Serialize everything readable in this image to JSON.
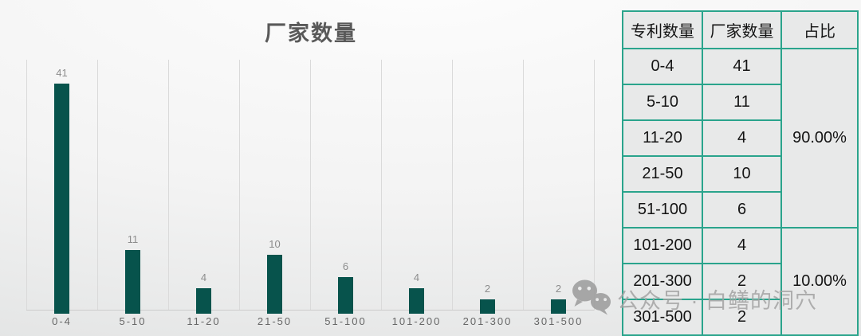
{
  "chart_data": {
    "type": "bar",
    "title": "厂家数量",
    "categories": [
      "0-4",
      "5-10",
      "11-20",
      "21-50",
      "51-100",
      "101-200",
      "201-300",
      "301-500"
    ],
    "values": [
      41,
      11,
      4,
      10,
      6,
      4,
      2,
      2
    ],
    "xlabel": "",
    "ylabel": "",
    "ylim": [
      0,
      45
    ],
    "bar_color": "#07534c",
    "data_labels": true,
    "gridlines": "vertical-category-separators",
    "legend": "none"
  },
  "table": {
    "headers": [
      "专利数量",
      "厂家数量",
      "占比"
    ],
    "rows": [
      {
        "range": "0-4",
        "count": "41"
      },
      {
        "range": "5-10",
        "count": "11"
      },
      {
        "range": "11-20",
        "count": "4"
      },
      {
        "range": "21-50",
        "count": "10"
      },
      {
        "range": "51-100",
        "count": "6"
      },
      {
        "range": "101-200",
        "count": "4"
      },
      {
        "range": "201-300",
        "count": "2"
      },
      {
        "range": "301-500",
        "count": "2"
      }
    ],
    "proportions": [
      {
        "value": "90.00%",
        "row_span": 5
      },
      {
        "value": "10.00%",
        "row_span": 3
      }
    ],
    "border_color": "#2aa48c"
  },
  "watermark": {
    "icon": "wechat-icon",
    "text": "公众号 · 白鳝的洞穴"
  }
}
